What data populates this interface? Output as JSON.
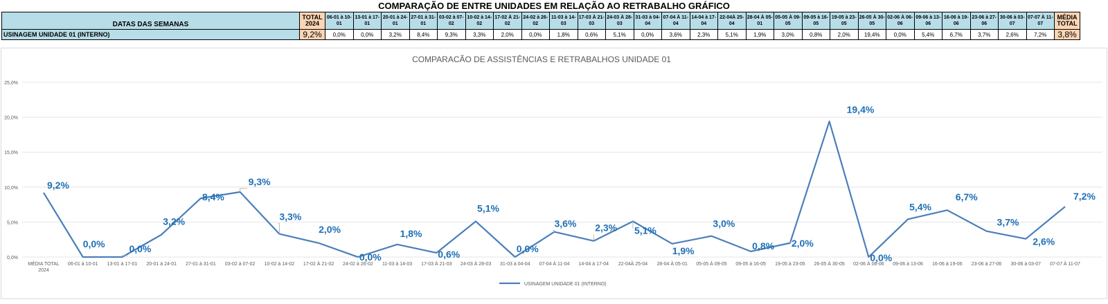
{
  "title": "COMPARAÇÃO DE ENTRE UNIDADES EM RELAÇÃO AO RETRABALHO GRÁFICO",
  "table": {
    "header_label": "DATAS DAS SEMANAS",
    "total_label": "TOTAL 2024",
    "average_label": "MÉDIA TOTAL",
    "week_headers": [
      "06-01 à 10-01",
      "13-01 à 17-01",
      "20-01 à 24-01",
      "27-01 à 31-01",
      "03-02 à 07-02",
      "10-02 à 14-02",
      "17-02 À 21-02",
      "24-02 à 26-02",
      "11-03 à 14-03",
      "17-03 À 21-03",
      "24-03 À 28-03",
      "31-03 à 04-04",
      "07-04 À 11-04",
      "14-04 à 17-04",
      "22-04À 25-04",
      "28-04 À 05-01",
      "05-05 À 09-05",
      "09-05 à 16-05",
      "19-05 à 23-05",
      "26-05 À 30-05",
      "02-06 À 06-06",
      "09-06 à 13-06",
      "16-06 à 19-06",
      "23-06 à 27-06",
      "30-06 à 03-07",
      "07-07 À 11-07"
    ],
    "row_label": "USINAGEM UNIDADE 01 (INTERNO)",
    "row_total": "9,2%",
    "row_values": [
      "0,0%",
      "0,0%",
      "3,2%",
      "8,4%",
      "9,3%",
      "3,3%",
      "2,0%",
      "0,0%",
      "1,8%",
      "0,6%",
      "5,1%",
      "0,0%",
      "3,6%",
      "2,3%",
      "5,1%",
      "1,9%",
      "3,0%",
      "0,8%",
      "2,0%",
      "19,4%",
      "0,0%",
      "5,4%",
      "6,7%",
      "3,7%",
      "2,6%",
      "7,2%"
    ],
    "row_average": "3,8%"
  },
  "chart_data": {
    "type": "line",
    "title": "COMPARACÃO DE ASSISTÊNCIAS E RETRABALHOS UNIDADE 01",
    "categories": [
      "MÉDIA TOTAL 2024",
      "06-01 à 10-01",
      "13-01 à 17-01",
      "20-01 à 24-01",
      "27-01 à 31-01",
      "03-02 à 07-02",
      "10-02 à 14-02",
      "17-02 À 21-02",
      "24-02 à 26-02",
      "11-03 à 14-03",
      "17-03 À 21-03",
      "24-03 À 28-03",
      "31-03 à 04-04",
      "07-04 À 11-04",
      "14-04 à 17-04",
      "22-04À 25-04",
      "28-04 À 05-01",
      "05-05 À 09-05",
      "09-05 à 16-05",
      "19-05 à 23-05",
      "26-05 À 30-05",
      "02-06 À 06-06",
      "09-06 à 13-06",
      "16-06 à 19-06",
      "23-06 à 27-06",
      "30-06 à 03-07",
      "07-07 À 11-07"
    ],
    "series": [
      {
        "name": "USINAGEM UNIDADE 01 (INTERNO)",
        "values": [
          9.2,
          0.0,
          0.0,
          3.2,
          8.4,
          9.3,
          3.3,
          2.0,
          0.0,
          1.8,
          0.6,
          5.1,
          0.0,
          3.6,
          2.3,
          5.1,
          1.9,
          3.0,
          0.8,
          2.0,
          19.4,
          0.0,
          5.4,
          6.7,
          3.7,
          2.6,
          7.2
        ],
        "labels": [
          "9,2%",
          "0,0%",
          "0,0%",
          "3,2%",
          "8,4%",
          "9,3%",
          "3,3%",
          "2,0%",
          "0,0%",
          "1,8%",
          "0,6%",
          "5,1%",
          "0,0%",
          "3,6%",
          "2,3%",
          "5,1%",
          "1,9%",
          "3,0%",
          "0,8%",
          "2,0%",
          "19,4%",
          "0,0%",
          "5,4%",
          "6,7%",
          "3,7%",
          "2,6%",
          "7,2%"
        ],
        "color": "#4a7eba",
        "label_color": "#1f6fb5"
      }
    ],
    "y_ticks": [
      "0,0%",
      "5,0%",
      "10,0%",
      "15,0%",
      "20,0%",
      "25,0%"
    ],
    "ylim": [
      0,
      25
    ],
    "grid": true,
    "legend": "bottom"
  }
}
